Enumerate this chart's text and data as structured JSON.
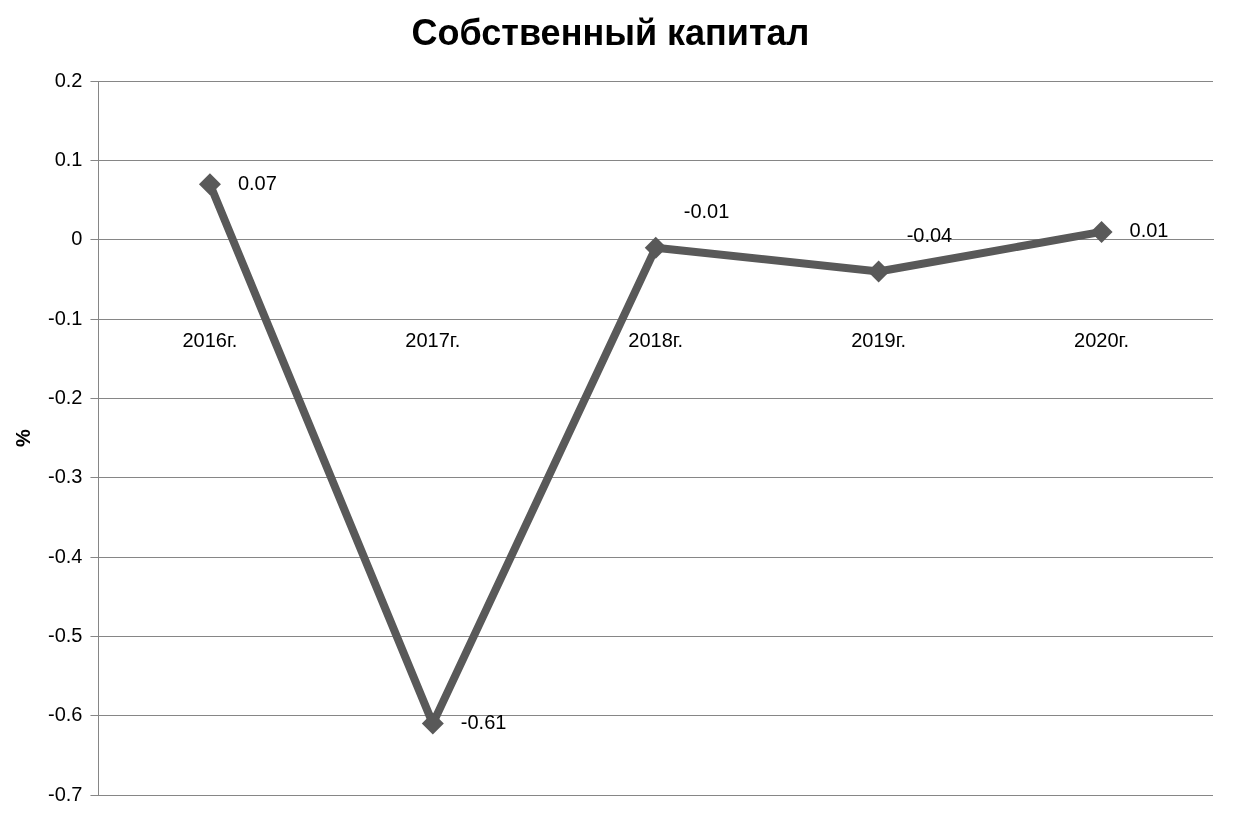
{
  "chart_data": {
    "type": "line",
    "title": "Собственный капитал",
    "ylabel": "%",
    "categories": [
      "2016г.",
      "2017г.",
      "2018г.",
      "2019г.",
      "2020г."
    ],
    "values": [
      0.07,
      -0.61,
      -0.01,
      -0.04,
      0.01
    ],
    "color": "#595959",
    "marker": "diamond",
    "line_style": "solid",
    "ylim": [
      -0.7,
      0.2
    ],
    "yticks": [
      -0.7,
      -0.6,
      -0.5,
      -0.4,
      -0.3,
      -0.2,
      -0.1,
      0,
      0.1,
      0.2
    ],
    "grid": "y",
    "data_labels": true
  }
}
